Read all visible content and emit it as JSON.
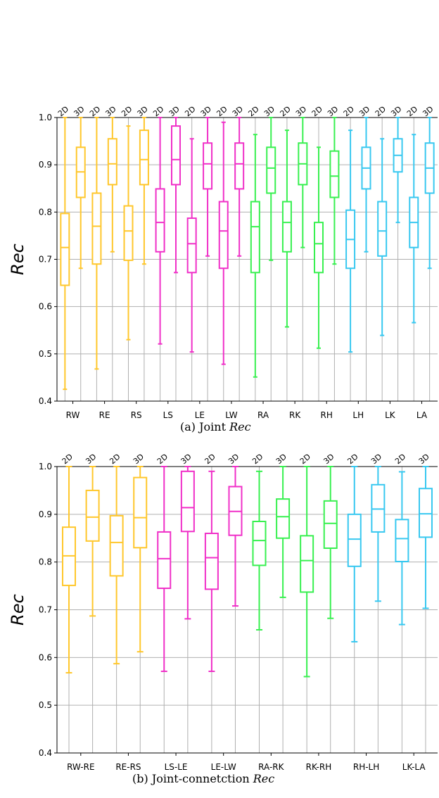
{
  "colors": {
    "orange": "#FFC72C",
    "magenta": "#F030C8",
    "green": "#38F050",
    "cyan": "#38C8F0",
    "grid": "#b0b0b0"
  },
  "chart_data": [
    {
      "type": "boxplot",
      "ylabel": "Rec",
      "ylim": [
        0.4,
        1.0
      ],
      "yticks": [
        "0.4",
        "0.5",
        "0.6",
        "0.7",
        "0.8",
        "0.9",
        "1.0"
      ],
      "grid": "horizontal",
      "caption": {
        "prefix": "(a) Joint ",
        "italic": "Rec"
      },
      "categories": [
        "RW",
        "RE",
        "RS",
        "LS",
        "LE",
        "LW",
        "RA",
        "RK",
        "RH",
        "LH",
        "LK",
        "LA"
      ],
      "group_colors": [
        "orange",
        "orange",
        "orange",
        "magenta",
        "magenta",
        "magenta",
        "green",
        "green",
        "green",
        "cyan",
        "cyan",
        "cyan"
      ],
      "series": [
        {
          "name": "2D",
          "boxes": [
            {
              "min": 0.425,
              "q1": 0.645,
              "median": 0.725,
              "q3": 0.797,
              "max": 1.0
            },
            {
              "min": 0.468,
              "q1": 0.69,
              "median": 0.77,
              "q3": 0.84,
              "max": 1.0
            },
            {
              "min": 0.53,
              "q1": 0.698,
              "median": 0.76,
              "q3": 0.813,
              "max": 0.982
            },
            {
              "min": 0.521,
              "q1": 0.716,
              "median": 0.778,
              "q3": 0.849,
              "max": 1.0
            },
            {
              "min": 0.504,
              "q1": 0.672,
              "median": 0.733,
              "q3": 0.787,
              "max": 0.955
            },
            {
              "min": 0.478,
              "q1": 0.681,
              "median": 0.76,
              "q3": 0.822,
              "max": 0.99
            },
            {
              "min": 0.451,
              "q1": 0.672,
              "median": 0.769,
              "q3": 0.822,
              "max": 0.964
            },
            {
              "min": 0.557,
              "q1": 0.716,
              "median": 0.778,
              "q3": 0.822,
              "max": 0.973
            },
            {
              "min": 0.512,
              "q1": 0.672,
              "median": 0.733,
              "q3": 0.778,
              "max": 0.937
            },
            {
              "min": 0.504,
              "q1": 0.681,
              "median": 0.742,
              "q3": 0.804,
              "max": 0.973
            },
            {
              "min": 0.539,
              "q1": 0.707,
              "median": 0.76,
              "q3": 0.822,
              "max": 0.955
            },
            {
              "min": 0.566,
              "q1": 0.725,
              "median": 0.778,
              "q3": 0.831,
              "max": 0.964
            }
          ]
        },
        {
          "name": "3D",
          "boxes": [
            {
              "min": 0.681,
              "q1": 0.831,
              "median": 0.885,
              "q3": 0.937,
              "max": 1.0
            },
            {
              "min": 0.716,
              "q1": 0.858,
              "median": 0.902,
              "q3": 0.955,
              "max": 1.0
            },
            {
              "min": 0.69,
              "q1": 0.858,
              "median": 0.911,
              "q3": 0.973,
              "max": 1.0
            },
            {
              "min": 0.672,
              "q1": 0.858,
              "median": 0.911,
              "q3": 0.982,
              "max": 1.0
            },
            {
              "min": 0.707,
              "q1": 0.849,
              "median": 0.902,
              "q3": 0.946,
              "max": 1.0
            },
            {
              "min": 0.707,
              "q1": 0.849,
              "median": 0.902,
              "q3": 0.946,
              "max": 1.0
            },
            {
              "min": 0.698,
              "q1": 0.84,
              "median": 0.893,
              "q3": 0.937,
              "max": 1.0
            },
            {
              "min": 0.725,
              "q1": 0.858,
              "median": 0.902,
              "q3": 0.946,
              "max": 1.0
            },
            {
              "min": 0.69,
              "q1": 0.831,
              "median": 0.876,
              "q3": 0.929,
              "max": 1.0
            },
            {
              "min": 0.716,
              "q1": 0.849,
              "median": 0.893,
              "q3": 0.937,
              "max": 1.0
            },
            {
              "min": 0.778,
              "q1": 0.885,
              "median": 0.92,
              "q3": 0.955,
              "max": 1.0
            },
            {
              "min": 0.681,
              "q1": 0.84,
              "median": 0.893,
              "q3": 0.946,
              "max": 1.0
            }
          ]
        }
      ]
    },
    {
      "type": "boxplot",
      "ylabel": "Rec",
      "ylim": [
        0.4,
        1.0
      ],
      "yticks": [
        "0.4",
        "0.5",
        "0.6",
        "0.7",
        "0.8",
        "0.9",
        "1.0"
      ],
      "grid": "horizontal",
      "caption": {
        "prefix": "(b) Joint-connetction ",
        "italic": "Rec"
      },
      "categories": [
        "RW-RE",
        "RE-RS",
        "LS-LE",
        "LE-LW",
        "RA-RK",
        "RK-RH",
        "RH-LH",
        "LK-LA"
      ],
      "group_colors": [
        "orange",
        "orange",
        "magenta",
        "magenta",
        "green",
        "green",
        "cyan",
        "cyan"
      ],
      "series": [
        {
          "name": "2D",
          "boxes": [
            {
              "min": 0.568,
              "q1": 0.751,
              "median": 0.813,
              "q3": 0.873,
              "max": 1.0
            },
            {
              "min": 0.587,
              "q1": 0.771,
              "median": 0.841,
              "q3": 0.897,
              "max": 1.0
            },
            {
              "min": 0.571,
              "q1": 0.745,
              "median": 0.807,
              "q3": 0.863,
              "max": 1.0
            },
            {
              "min": 0.571,
              "q1": 0.743,
              "median": 0.809,
              "q3": 0.86,
              "max": 0.99
            },
            {
              "min": 0.658,
              "q1": 0.793,
              "median": 0.845,
              "q3": 0.885,
              "max": 0.99
            },
            {
              "min": 0.56,
              "q1": 0.737,
              "median": 0.803,
              "q3": 0.855,
              "max": 1.0
            },
            {
              "min": 0.633,
              "q1": 0.791,
              "median": 0.848,
              "q3": 0.9,
              "max": 1.0
            },
            {
              "min": 0.669,
              "q1": 0.801,
              "median": 0.849,
              "q3": 0.889,
              "max": 0.989
            }
          ]
        },
        {
          "name": "3D",
          "boxes": [
            {
              "min": 0.687,
              "q1": 0.844,
              "median": 0.894,
              "q3": 0.95,
              "max": 1.0
            },
            {
              "min": 0.612,
              "q1": 0.83,
              "median": 0.893,
              "q3": 0.977,
              "max": 1.0
            },
            {
              "min": 0.681,
              "q1": 0.864,
              "median": 0.914,
              "q3": 0.99,
              "max": 1.0
            },
            {
              "min": 0.708,
              "q1": 0.856,
              "median": 0.906,
              "q3": 0.958,
              "max": 1.0
            },
            {
              "min": 0.726,
              "q1": 0.85,
              "median": 0.895,
              "q3": 0.932,
              "max": 1.0
            },
            {
              "min": 0.682,
              "q1": 0.829,
              "median": 0.881,
              "q3": 0.928,
              "max": 1.0
            },
            {
              "min": 0.718,
              "q1": 0.863,
              "median": 0.911,
              "q3": 0.962,
              "max": 1.0
            },
            {
              "min": 0.703,
              "q1": 0.852,
              "median": 0.901,
              "q3": 0.954,
              "max": 1.0
            }
          ]
        }
      ]
    }
  ]
}
